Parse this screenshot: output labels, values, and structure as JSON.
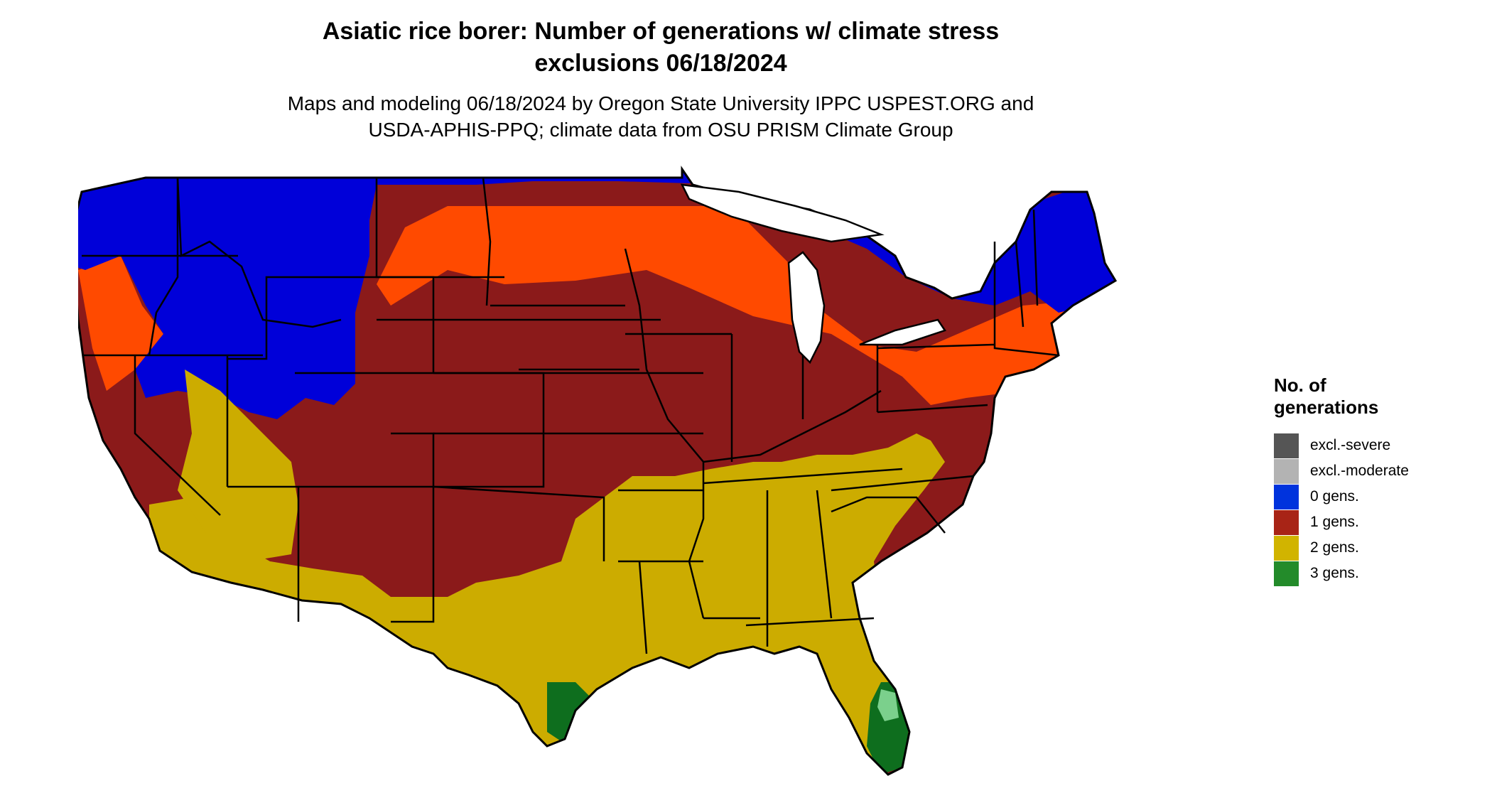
{
  "title_line1": "Asiatic rice borer: Number of generations w/ climate stress",
  "title_line2": "exclusions 06/18/2024",
  "subtitle_line1": "Maps and modeling 06/18/2024 by Oregon State University IPPC USPEST.ORG and",
  "subtitle_line2": "USDA-APHIS-PPQ; climate data from OSU PRISM Climate Group",
  "legend": {
    "title_line1": "No. of",
    "title_line2": "generations",
    "items": [
      {
        "label": "excl.-severe",
        "color": "#555555"
      },
      {
        "label": "excl.-moderate",
        "color": "#b3b3b3"
      },
      {
        "label": "0 gens.",
        "color": "#0033dd"
      },
      {
        "label": "1 gens.",
        "color": "#a82416"
      },
      {
        "label": "2 gens.",
        "color": "#d1b400"
      },
      {
        "label": "3 gens.",
        "color": "#238b2a"
      }
    ]
  },
  "map_colors": {
    "zero_gens": "#0000d9",
    "one_gens_dark": "#8b1a1a",
    "one_gens_light": "#ff4a00",
    "two_gens": "#ccac00",
    "two_gens_edge": "#f2f200",
    "three_gens": "#0e6e1e",
    "three_gens_light": "#7bd08c",
    "borders": "#000000"
  }
}
